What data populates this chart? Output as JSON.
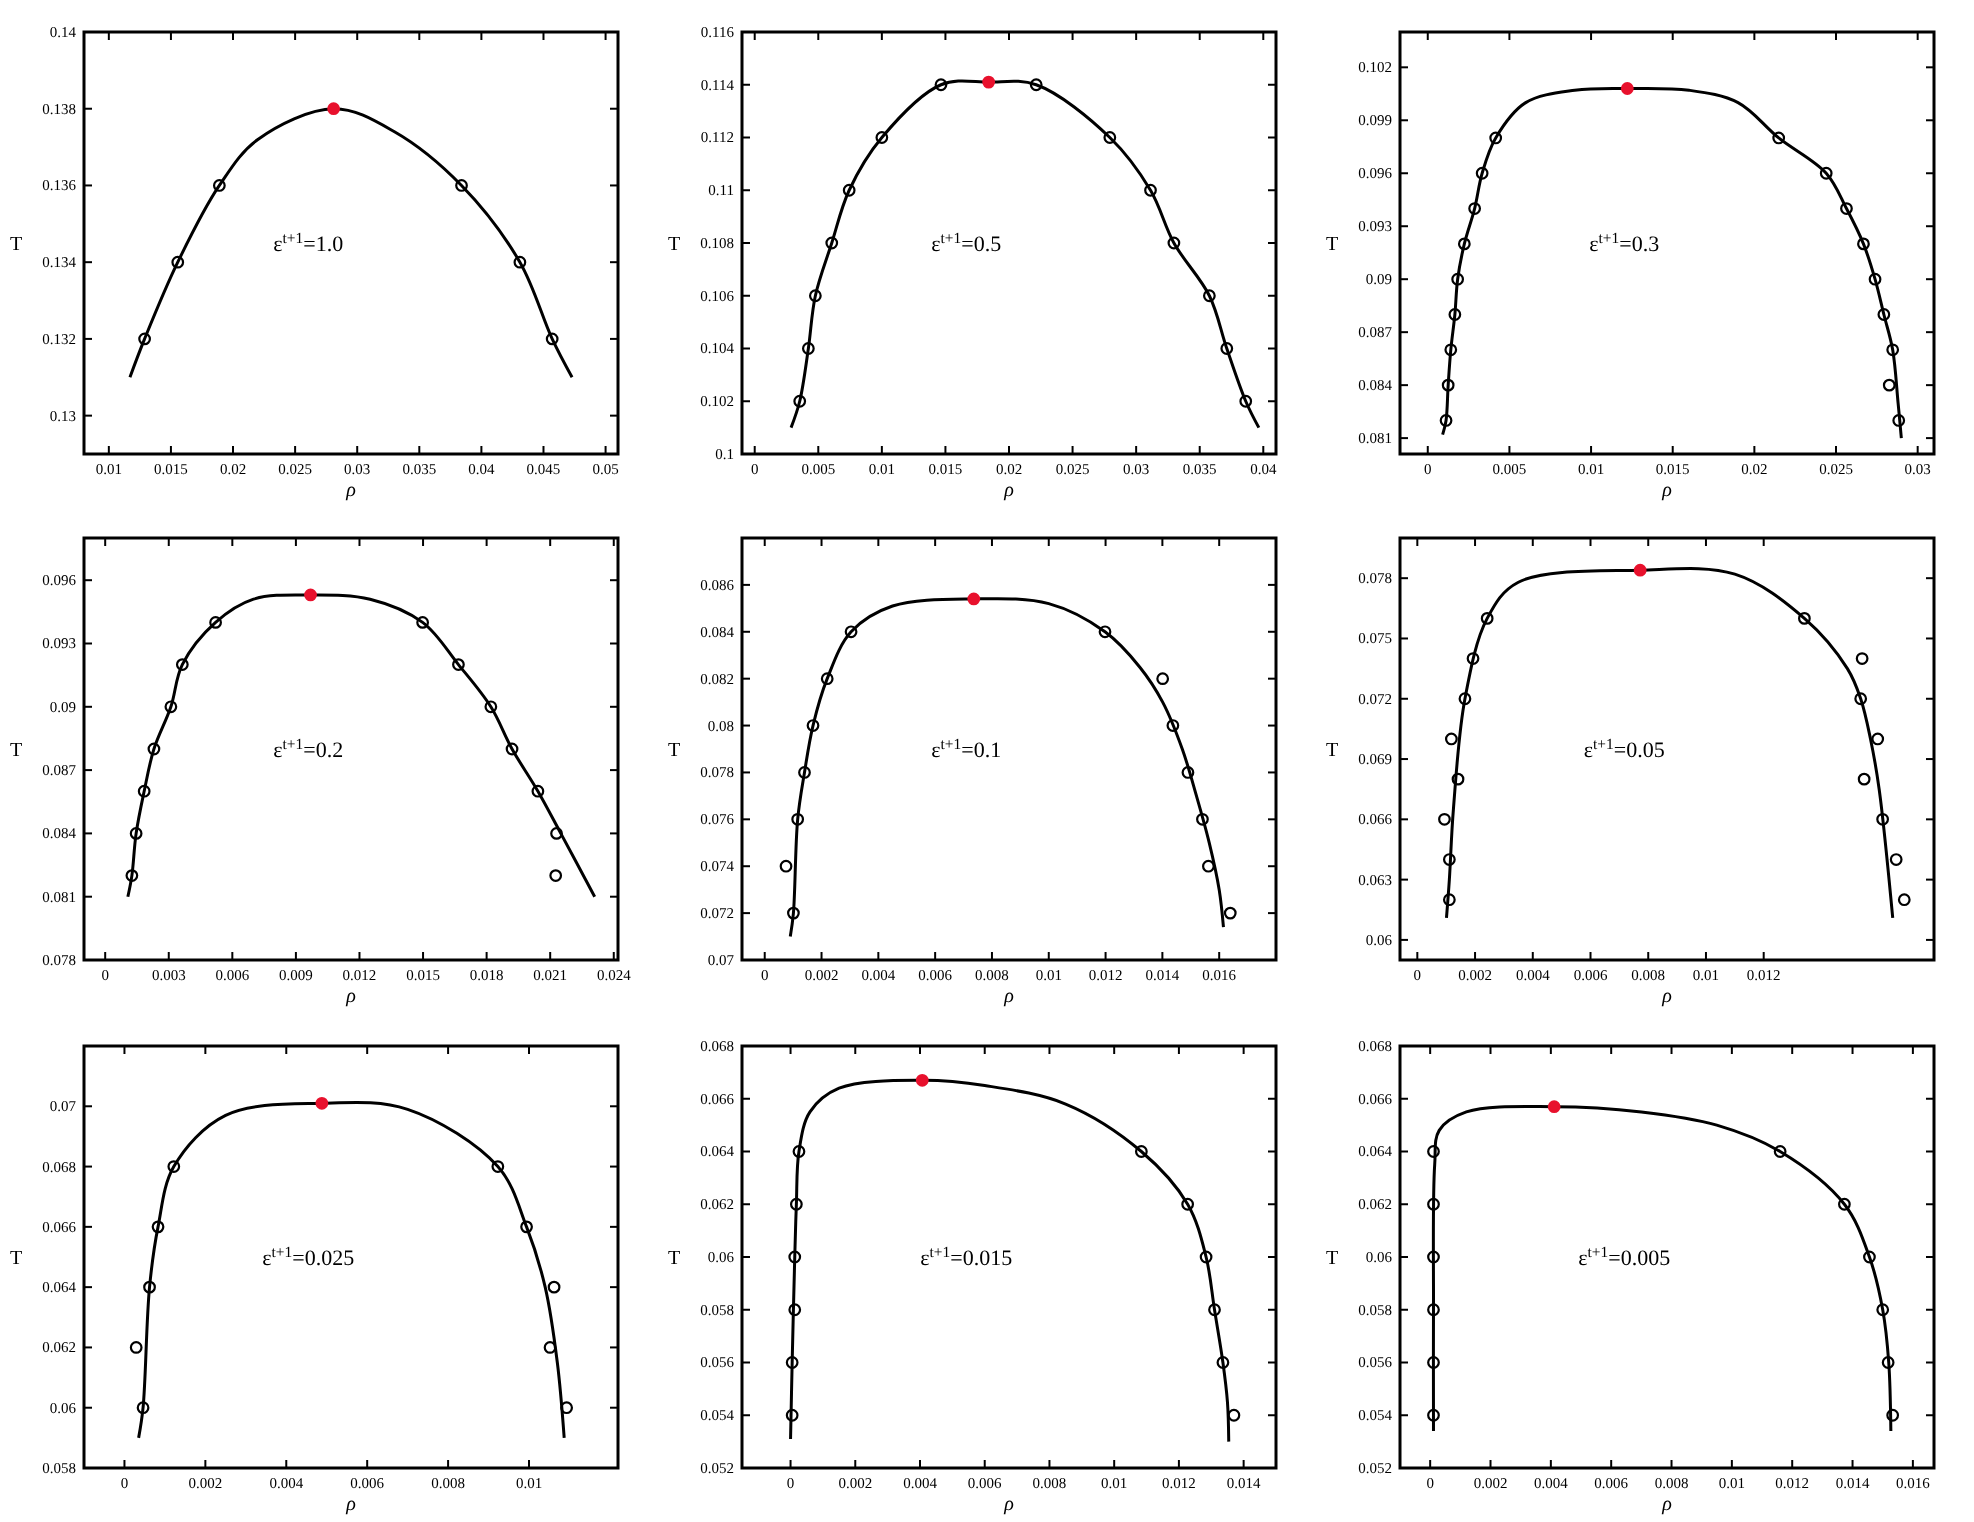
{
  "chart_data": [
    {
      "type": "line",
      "xlabel": "ρ",
      "ylabel": "T",
      "annotations": [
        "ε$^{t+1}$=1.0"
      ],
      "xlim": [
        0.008,
        0.051
      ],
      "ylim": [
        0.129,
        0.14
      ],
      "xticks": [
        0.01,
        0.015,
        0.02,
        0.025,
        0.03,
        0.035,
        0.04,
        0.045,
        0.05
      ],
      "yticks": [
        0.13,
        0.132,
        0.134,
        0.136,
        0.138,
        0.14
      ],
      "series": [
        {
          "type": "line",
          "color": "#000000",
          "marker": "none",
          "x": [
            0.0117,
            0.01288,
            0.01555,
            0.0189,
            0.022,
            0.0281,
            0.033,
            0.0384,
            0.0431,
            0.0457,
            0.0473
          ],
          "values": [
            0.131,
            0.132,
            0.134,
            0.136,
            0.1372,
            0.138,
            0.1374,
            0.136,
            0.134,
            0.132,
            0.131
          ]
        },
        {
          "type": "scatter",
          "color": "#000000",
          "marker": "circle",
          "x": [
            0.01288,
            0.01555,
            0.0189,
            0.0384,
            0.0431,
            0.0457
          ],
          "values": [
            0.132,
            0.134,
            0.136,
            0.136,
            0.134,
            0.132
          ]
        },
        {
          "type": "scatter",
          "color": "#e8112d",
          "marker": "circle",
          "x": [
            0.0281
          ],
          "values": [
            0.138
          ]
        }
      ]
    },
    {
      "type": "line",
      "xlabel": "ρ",
      "ylabel": "T",
      "annotations": [
        "ε$^{t+1}$=0.5"
      ],
      "xlim": [
        -0.001,
        0.041
      ],
      "ylim": [
        0.1,
        0.116
      ],
      "xticks": [
        0,
        0.005,
        0.01,
        0.015,
        0.02,
        0.025,
        0.03,
        0.035,
        0.04
      ],
      "yticks": [
        0.1,
        0.102,
        0.104,
        0.106,
        0.108,
        0.11,
        0.112,
        0.114,
        0.116
      ],
      "series": [
        {
          "type": "line",
          "color": "#000000",
          "marker": "none",
          "x": [
            0.00286,
            0.00354,
            0.00422,
            0.00477,
            0.00606,
            0.00743,
            0.01,
            0.01465,
            0.0184,
            0.02214,
            0.02793,
            0.03113,
            0.03297,
            0.03576,
            0.03713,
            0.03862,
            0.03965
          ],
          "values": [
            0.101,
            0.102,
            0.104,
            0.106,
            0.108,
            0.11,
            0.112,
            0.114,
            0.1141,
            0.114,
            0.112,
            0.11,
            0.108,
            0.106,
            0.104,
            0.102,
            0.101
          ]
        },
        {
          "type": "scatter",
          "color": "#000000",
          "marker": "circle",
          "x": [
            0.00354,
            0.00422,
            0.00477,
            0.00606,
            0.00743,
            0.01,
            0.01465,
            0.02214,
            0.02793,
            0.03113,
            0.03297,
            0.03576,
            0.03713,
            0.03862
          ],
          "values": [
            0.102,
            0.104,
            0.106,
            0.108,
            0.11,
            0.112,
            0.114,
            0.114,
            0.112,
            0.11,
            0.108,
            0.106,
            0.104,
            0.102
          ]
        },
        {
          "type": "scatter",
          "color": "#e8112d",
          "marker": "circle",
          "x": [
            0.0184
          ],
          "values": [
            0.1141
          ]
        }
      ]
    },
    {
      "type": "line",
      "xlabel": "ρ",
      "ylabel": "T",
      "annotations": [
        "ε$^{t+1}$=0.3"
      ],
      "xlim": [
        -0.0017,
        0.031
      ],
      "ylim": [
        0.0801,
        0.104
      ],
      "xticks": [
        0,
        0.005,
        0.01,
        0.015,
        0.02,
        0.025,
        0.03
      ],
      "yticks": [
        0.081,
        0.084,
        0.087,
        0.09,
        0.093,
        0.096,
        0.099,
        0.102
      ],
      "series": [
        {
          "type": "line",
          "color": "#000000",
          "marker": "none",
          "x": [
            0.00091,
            0.00112,
            0.00125,
            0.00141,
            0.00166,
            0.00183,
            0.00224,
            0.00287,
            0.00333,
            0.00416,
            0.006,
            0.009,
            0.01222,
            0.016,
            0.019,
            0.02149,
            0.0244,
            0.02564,
            0.02668,
            0.02739,
            0.02793,
            0.02847,
            0.0288,
            0.029
          ],
          "values": [
            0.0812,
            0.082,
            0.084,
            0.086,
            0.088,
            0.09,
            0.092,
            0.094,
            0.096,
            0.098,
            0.1,
            0.1007,
            0.1008,
            0.1007,
            0.1,
            0.098,
            0.096,
            0.094,
            0.092,
            0.09,
            0.088,
            0.086,
            0.083,
            0.081
          ]
        },
        {
          "type": "scatter",
          "color": "#000000",
          "marker": "circle",
          "x": [
            0.00112,
            0.00125,
            0.00141,
            0.00166,
            0.00183,
            0.00224,
            0.00287,
            0.00333,
            0.00416,
            0.02149,
            0.0244,
            0.02564,
            0.02668,
            0.02739,
            0.02793,
            0.02847,
            0.02826,
            0.02884
          ],
          "values": [
            0.082,
            0.084,
            0.086,
            0.088,
            0.09,
            0.092,
            0.094,
            0.096,
            0.098,
            0.098,
            0.096,
            0.094,
            0.092,
            0.09,
            0.088,
            0.086,
            0.084,
            0.082
          ]
        },
        {
          "type": "scatter",
          "color": "#e8112d",
          "marker": "circle",
          "x": [
            0.01222
          ],
          "values": [
            0.1008
          ]
        }
      ]
    },
    {
      "type": "line",
      "xlabel": "ρ",
      "ylabel": "T",
      "annotations": [
        "ε$^{t+1}$=0.2"
      ],
      "xlim": [
        -0.001,
        0.0242
      ],
      "ylim": [
        0.078,
        0.098
      ],
      "xticks": [
        0,
        0.003,
        0.006,
        0.009,
        0.012,
        0.015,
        0.018,
        0.021,
        0.024
      ],
      "yticks": [
        0.078,
        0.081,
        0.084,
        0.087,
        0.09,
        0.093,
        0.096
      ],
      "series": [
        {
          "type": "line",
          "color": "#000000",
          "marker": "none",
          "x": [
            0.00107,
            0.00126,
            0.00146,
            0.00184,
            0.0023,
            0.0031,
            0.00364,
            0.00521,
            0.007,
            0.00969,
            0.0125,
            0.01498,
            0.01667,
            0.0182,
            0.0192,
            0.02042,
            0.0215,
            0.0231
          ],
          "values": [
            0.081,
            0.082,
            0.084,
            0.086,
            0.088,
            0.09,
            0.092,
            0.094,
            0.0951,
            0.0953,
            0.0951,
            0.094,
            0.092,
            0.09,
            0.088,
            0.086,
            0.084,
            0.081
          ]
        },
        {
          "type": "scatter",
          "color": "#000000",
          "marker": "circle",
          "x": [
            0.00126,
            0.00146,
            0.00184,
            0.0023,
            0.0031,
            0.00364,
            0.00521,
            0.01498,
            0.01667,
            0.0182,
            0.0192,
            0.02042,
            0.0213,
            0.02126
          ],
          "values": [
            0.082,
            0.084,
            0.086,
            0.088,
            0.09,
            0.092,
            0.094,
            0.094,
            0.092,
            0.09,
            0.088,
            0.086,
            0.084,
            0.082
          ]
        },
        {
          "type": "scatter",
          "color": "#e8112d",
          "marker": "circle",
          "x": [
            0.00969
          ],
          "values": [
            0.0953
          ]
        }
      ]
    },
    {
      "type": "line",
      "xlabel": "ρ",
      "ylabel": "T",
      "annotations": [
        "ε$^{t+1}$=0.1"
      ],
      "xlim": [
        -0.0008,
        0.018
      ],
      "ylim": [
        0.07,
        0.088
      ],
      "xticks": [
        0,
        0.002,
        0.004,
        0.006,
        0.008,
        0.01,
        0.012,
        0.014,
        0.016
      ],
      "yticks": [
        0.07,
        0.072,
        0.074,
        0.076,
        0.078,
        0.08,
        0.082,
        0.084,
        0.086
      ],
      "series": [
        {
          "type": "line",
          "color": "#000000",
          "marker": "none",
          "x": [
            0.0009,
            0.00101,
            0.00116,
            0.0014,
            0.0017,
            0.0022,
            0.00304,
            0.0045,
            0.00736,
            0.01,
            0.01198,
            0.0132,
            0.01401,
            0.0147,
            0.0152,
            0.01565,
            0.016,
            0.01615
          ],
          "values": [
            0.071,
            0.072,
            0.076,
            0.078,
            0.08,
            0.082,
            0.084,
            0.0851,
            0.0854,
            0.0852,
            0.084,
            0.0825,
            0.081,
            0.079,
            0.077,
            0.075,
            0.073,
            0.0714
          ]
        },
        {
          "type": "scatter",
          "color": "#000000",
          "marker": "circle",
          "x": [
            0.00075,
            0.00101,
            0.00116,
            0.0014,
            0.0017,
            0.0022,
            0.00304,
            0.01198,
            0.01401,
            0.01437,
            0.0149,
            0.01541,
            0.01562,
            0.01639
          ],
          "values": [
            0.074,
            0.072,
            0.076,
            0.078,
            0.08,
            0.082,
            0.084,
            0.084,
            0.082,
            0.08,
            0.078,
            0.076,
            0.074,
            0.072
          ]
        },
        {
          "type": "scatter",
          "color": "#e8112d",
          "marker": "circle",
          "x": [
            0.00736
          ],
          "values": [
            0.0854
          ]
        }
      ]
    },
    {
      "type": "line",
      "xlabel": "ρ",
      "ylabel": "T",
      "annotations": [
        "ε$^{t+1}$=0.05"
      ],
      "xlim": [
        -0.0006,
        0.0179
      ],
      "ylim": [
        0.059,
        0.08
      ],
      "xticks": [
        0,
        0.002,
        0.004,
        0.006,
        0.008,
        0.01,
        0.012
      ],
      "yticks": [
        0.06,
        0.063,
        0.066,
        0.069,
        0.072,
        0.075,
        0.078
      ],
      "series": [
        {
          "type": "line",
          "color": "#000000",
          "marker": "none",
          "x": [
            0.00101,
            0.00111,
            0.00125,
            0.00165,
            0.00242,
            0.0035,
            0.00772,
            0.011,
            0.01341,
            0.0149,
            0.01536,
            0.0157,
            0.016,
            0.01647
          ],
          "values": [
            0.0611,
            0.063,
            0.0665,
            0.072,
            0.076,
            0.0778,
            0.0784,
            0.0782,
            0.076,
            0.0735,
            0.072,
            0.07,
            0.0675,
            0.0611
          ]
        },
        {
          "type": "scatter",
          "color": "#000000",
          "marker": "circle",
          "x": [
            0.00111,
            0.00111,
            0.00094,
            0.00141,
            0.00118,
            0.00165,
            0.00193,
            0.00242,
            0.01341,
            0.01541,
            0.01536,
            0.01548,
            0.01595,
            0.01612,
            0.01659,
            0.01687
          ],
          "values": [
            0.062,
            0.064,
            0.066,
            0.068,
            0.07,
            0.072,
            0.074,
            0.076,
            0.076,
            0.074,
            0.072,
            0.068,
            0.07,
            0.066,
            0.064,
            0.062
          ]
        },
        {
          "type": "scatter",
          "color": "#e8112d",
          "marker": "circle",
          "x": [
            0.00772
          ],
          "values": [
            0.0784
          ]
        }
      ]
    },
    {
      "type": "line",
      "xlabel": "ρ",
      "ylabel": "T",
      "annotations": [
        "ε$^{t+1}$=0.025"
      ],
      "xlim": [
        -0.001,
        0.0122
      ],
      "ylim": [
        0.058,
        0.072
      ],
      "xticks": [
        0,
        0.002,
        0.004,
        0.006,
        0.008,
        0.01
      ],
      "yticks": [
        0.058,
        0.06,
        0.062,
        0.064,
        0.066,
        0.068,
        0.07
      ],
      "series": [
        {
          "type": "line",
          "color": "#000000",
          "marker": "none",
          "x": [
            0.00035,
            0.00046,
            0.00062,
            0.00083,
            0.00122,
            0.0025,
            0.00488,
            0.007,
            0.00923,
            0.00994,
            0.0104,
            0.0107,
            0.01087
          ],
          "values": [
            0.059,
            0.06,
            0.064,
            0.066,
            0.068,
            0.0697,
            0.0701,
            0.0699,
            0.068,
            0.066,
            0.064,
            0.0615,
            0.059
          ]
        },
        {
          "type": "scatter",
          "color": "#000000",
          "marker": "circle",
          "x": [
            0.00029,
            0.00046,
            0.00062,
            0.00083,
            0.00122,
            0.00923,
            0.00994,
            0.01062,
            0.01052,
            0.01093
          ],
          "values": [
            0.062,
            0.06,
            0.064,
            0.066,
            0.068,
            0.068,
            0.066,
            0.064,
            0.062,
            0.06
          ]
        },
        {
          "type": "scatter",
          "color": "#e8112d",
          "marker": "circle",
          "x": [
            0.00488
          ],
          "values": [
            0.0701
          ]
        }
      ]
    },
    {
      "type": "line",
      "xlabel": "ρ",
      "ylabel": "T",
      "annotations": [
        "ε$^{t+1}$=0.015"
      ],
      "xlim": [
        -0.0015,
        0.015
      ],
      "ylim": [
        0.052,
        0.068
      ],
      "xticks": [
        0,
        0.002,
        0.004,
        0.006,
        0.008,
        0.01,
        0.012,
        0.014
      ],
      "yticks": [
        0.052,
        0.054,
        0.056,
        0.058,
        0.06,
        0.062,
        0.064,
        0.066,
        0.068
      ],
      "series": [
        {
          "type": "line",
          "color": "#000000",
          "marker": "none",
          "x": [
            0,
            5e-05,
            0.00013,
            0.00018,
            0.00026,
            0.0006,
            0.0015,
            0.00407,
            0.006,
            0.0085,
            0.01084,
            0.01227,
            0.01284,
            0.0131,
            0.01336,
            0.0135,
            0.01354
          ],
          "values": [
            0.0531,
            0.056,
            0.06,
            0.062,
            0.064,
            0.0655,
            0.0664,
            0.0667,
            0.0665,
            0.0658,
            0.064,
            0.062,
            0.06,
            0.058,
            0.056,
            0.0545,
            0.053
          ]
        },
        {
          "type": "scatter",
          "color": "#000000",
          "marker": "circle",
          "x": [
            5e-05,
            5e-05,
            0.00013,
            0.00013,
            0.00018,
            0.00026,
            0.01084,
            0.01227,
            0.01284,
            0.0131,
            0.01336,
            0.0137
          ],
          "values": [
            0.054,
            0.056,
            0.058,
            0.06,
            0.062,
            0.064,
            0.064,
            0.062,
            0.06,
            0.058,
            0.056,
            0.054
          ]
        },
        {
          "type": "scatter",
          "color": "#e8112d",
          "marker": "circle",
          "x": [
            0.00407
          ],
          "values": [
            0.0667
          ]
        }
      ]
    },
    {
      "type": "line",
      "xlabel": "ρ",
      "ylabel": "T",
      "annotations": [
        "ε$^{t+1}$=0.005"
      ],
      "xlim": [
        -0.001,
        0.0167
      ],
      "ylim": [
        0.052,
        0.068
      ],
      "xticks": [
        0,
        0.002,
        0.004,
        0.006,
        0.008,
        0.01,
        0.012,
        0.014,
        0.016
      ],
      "yticks": [
        0.052,
        0.054,
        0.056,
        0.058,
        0.06,
        0.062,
        0.064,
        0.066,
        0.068
      ],
      "series": [
        {
          "type": "line",
          "color": "#000000",
          "marker": "none",
          "x": [
            0.00011,
            0.00011,
            0.00015,
            0.0003,
            0.0012,
            0.00411,
            0.007,
            0.0095,
            0.0116,
            0.01373,
            0.01456,
            0.015,
            0.0152,
            0.01527
          ],
          "values": [
            0.0534,
            0.058,
            0.0635,
            0.0648,
            0.0655,
            0.0657,
            0.0655,
            0.065,
            0.064,
            0.062,
            0.06,
            0.058,
            0.056,
            0.0534
          ]
        },
        {
          "type": "scatter",
          "color": "#000000",
          "marker": "circle",
          "x": [
            0.00011,
            0.00011,
            0.00011,
            0.00011,
            0.00011,
            0.00011,
            0.0116,
            0.01373,
            0.01456,
            0.015,
            0.01518,
            0.01533
          ],
          "values": [
            0.054,
            0.056,
            0.058,
            0.06,
            0.062,
            0.064,
            0.064,
            0.062,
            0.06,
            0.058,
            0.056,
            0.054
          ]
        },
        {
          "type": "scatter",
          "color": "#e8112d",
          "marker": "circle",
          "x": [
            0.00411
          ],
          "values": [
            0.0657
          ]
        }
      ]
    }
  ]
}
